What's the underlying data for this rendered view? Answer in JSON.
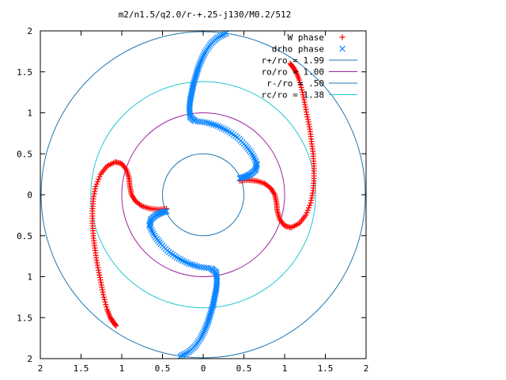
{
  "chart_data": {
    "type": "scatter",
    "title": "m2/n1.5/q2.0/r-+.25-j130/M0.2/512",
    "xlabel": "",
    "ylabel": "",
    "xlim": [
      -2,
      2
    ],
    "ylim": [
      -2,
      2
    ],
    "x_tick_values": [
      -2,
      -1.5,
      -1,
      -0.5,
      0,
      0.5,
      1,
      1.5,
      2
    ],
    "x_tick_labels": [
      "2",
      "1.5",
      "1",
      "0.5",
      "0",
      "0.5",
      "1",
      "1.5",
      "2"
    ],
    "y_tick_values": [
      2,
      1.5,
      1,
      0.5,
      0,
      -0.5,
      -1,
      -1.5,
      -2
    ],
    "y_tick_labels": [
      "2",
      "1.5",
      "1",
      "0.5",
      "0",
      "0.5",
      "1",
      "1.5",
      "2"
    ],
    "grid": false,
    "legend_position": "top-right",
    "circles": [
      {
        "name": "r+/ro = 1.99",
        "radius": 1.99,
        "color": "#1f77b4"
      },
      {
        "name": "ro/ro = 1.00",
        "radius": 1.0,
        "color": "#a020a0"
      },
      {
        "name": "r-/ro = .50",
        "radius": 0.5,
        "color": "#1f77b4"
      },
      {
        "name": "rc/ro = 1.38",
        "radius": 1.38,
        "color": "#22c8d0"
      }
    ],
    "series": [
      {
        "name": "W phase",
        "marker": "+",
        "color": "#ff0000",
        "points": [
          [
            0.45,
            0.17
          ],
          [
            0.55,
            0.18
          ],
          [
            0.65,
            0.17
          ],
          [
            0.75,
            0.14
          ],
          [
            0.83,
            0.08
          ],
          [
            0.88,
            0.0
          ],
          [
            0.9,
            -0.1
          ],
          [
            0.91,
            -0.2
          ],
          [
            0.94,
            -0.3
          ],
          [
            1.0,
            -0.38
          ],
          [
            1.08,
            -0.4
          ],
          [
            1.18,
            -0.35
          ],
          [
            1.26,
            -0.25
          ],
          [
            1.32,
            -0.1
          ],
          [
            1.35,
            0.05
          ],
          [
            1.36,
            0.2
          ],
          [
            1.36,
            0.35
          ],
          [
            1.35,
            0.5
          ],
          [
            1.33,
            0.65
          ],
          [
            1.31,
            0.8
          ],
          [
            1.28,
            0.95
          ],
          [
            1.25,
            1.1
          ],
          [
            1.22,
            1.25
          ],
          [
            1.18,
            1.4
          ],
          [
            1.14,
            1.5
          ],
          [
            1.1,
            1.56
          ],
          [
            1.07,
            1.6
          ],
          [
            -0.45,
            -0.17
          ],
          [
            -0.55,
            -0.18
          ],
          [
            -0.65,
            -0.17
          ],
          [
            -0.75,
            -0.14
          ],
          [
            -0.83,
            -0.08
          ],
          [
            -0.88,
            0.0
          ],
          [
            -0.9,
            0.1
          ],
          [
            -0.91,
            0.2
          ],
          [
            -0.94,
            0.3
          ],
          [
            -1.0,
            0.38
          ],
          [
            -1.08,
            0.4
          ],
          [
            -1.18,
            0.35
          ],
          [
            -1.26,
            0.25
          ],
          [
            -1.32,
            0.1
          ],
          [
            -1.35,
            -0.05
          ],
          [
            -1.36,
            -0.2
          ],
          [
            -1.36,
            -0.35
          ],
          [
            -1.35,
            -0.5
          ],
          [
            -1.33,
            -0.65
          ],
          [
            -1.31,
            -0.8
          ],
          [
            -1.28,
            -0.95
          ],
          [
            -1.25,
            -1.1
          ],
          [
            -1.22,
            -1.25
          ],
          [
            -1.18,
            -1.4
          ],
          [
            -1.14,
            -1.5
          ],
          [
            -1.1,
            -1.56
          ],
          [
            -1.07,
            -1.6
          ]
        ]
      },
      {
        "name": "drho phase",
        "marker": "x",
        "color": "#0a84ff",
        "points": [
          [
            0.45,
            0.2
          ],
          [
            0.52,
            0.22
          ],
          [
            0.58,
            0.25
          ],
          [
            0.64,
            0.3
          ],
          [
            0.66,
            0.38
          ],
          [
            0.6,
            0.5
          ],
          [
            0.52,
            0.6
          ],
          [
            0.42,
            0.7
          ],
          [
            0.3,
            0.78
          ],
          [
            0.18,
            0.84
          ],
          [
            0.05,
            0.88
          ],
          [
            -0.1,
            0.9
          ],
          [
            -0.16,
            0.95
          ],
          [
            -0.17,
            1.05
          ],
          [
            -0.16,
            1.15
          ],
          [
            -0.14,
            1.25
          ],
          [
            -0.12,
            1.35
          ],
          [
            -0.09,
            1.45
          ],
          [
            -0.06,
            1.55
          ],
          [
            -0.02,
            1.65
          ],
          [
            0.03,
            1.75
          ],
          [
            0.1,
            1.85
          ],
          [
            0.18,
            1.92
          ],
          [
            0.28,
            1.97
          ],
          [
            -0.45,
            -0.2
          ],
          [
            -0.52,
            -0.22
          ],
          [
            -0.58,
            -0.25
          ],
          [
            -0.64,
            -0.3
          ],
          [
            -0.66,
            -0.38
          ],
          [
            -0.6,
            -0.5
          ],
          [
            -0.52,
            -0.6
          ],
          [
            -0.42,
            -0.7
          ],
          [
            -0.3,
            -0.78
          ],
          [
            -0.18,
            -0.84
          ],
          [
            -0.05,
            -0.88
          ],
          [
            0.1,
            -0.9
          ],
          [
            0.16,
            -0.95
          ],
          [
            0.17,
            -1.05
          ],
          [
            0.16,
            -1.15
          ],
          [
            0.14,
            -1.25
          ],
          [
            0.12,
            -1.35
          ],
          [
            0.09,
            -1.45
          ],
          [
            0.06,
            -1.55
          ],
          [
            0.02,
            -1.65
          ],
          [
            -0.03,
            -1.75
          ],
          [
            -0.1,
            -1.85
          ],
          [
            -0.18,
            -1.92
          ],
          [
            -0.28,
            -1.97
          ]
        ]
      }
    ]
  }
}
